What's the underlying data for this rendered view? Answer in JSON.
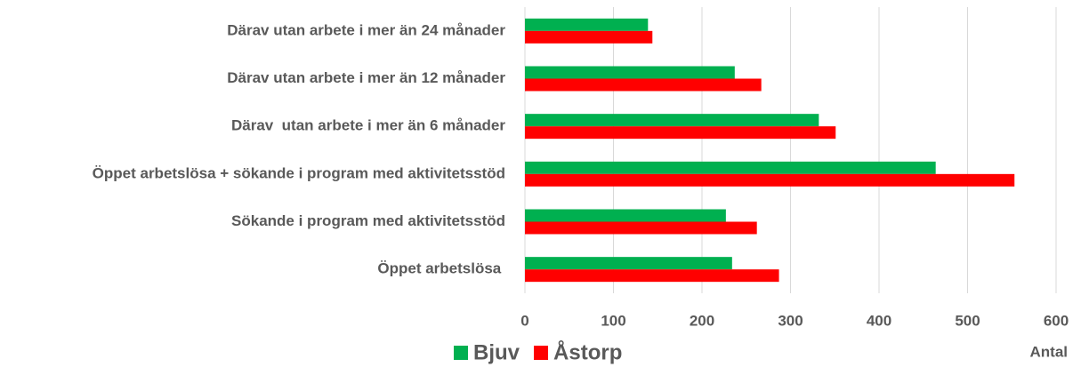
{
  "chart_data": {
    "type": "hbar",
    "categories": [
      "Därav utan arbete i mer än 24 månader",
      "Därav utan arbete i mer än 12 månader",
      "Därav  utan arbete i mer än 6 månader",
      "Öppet arbetslösa + sökande i program med aktivitetsstöd",
      "Sökande i program med aktivitetsstöd",
      "Öppet arbetslösa "
    ],
    "series": [
      {
        "name": "Bjuv",
        "color": "#00b050",
        "values": [
          139,
          237,
          332,
          464,
          227,
          234
        ]
      },
      {
        "name": "Åstorp",
        "color": "#ff0000",
        "values": [
          144,
          267,
          351,
          553,
          262,
          287
        ]
      }
    ],
    "xlabel": "Antal",
    "xlim": [
      0,
      600
    ],
    "xticks": [
      0,
      100,
      200,
      300,
      400,
      500,
      600
    ],
    "grid": true,
    "legend": "bottom-left"
  }
}
